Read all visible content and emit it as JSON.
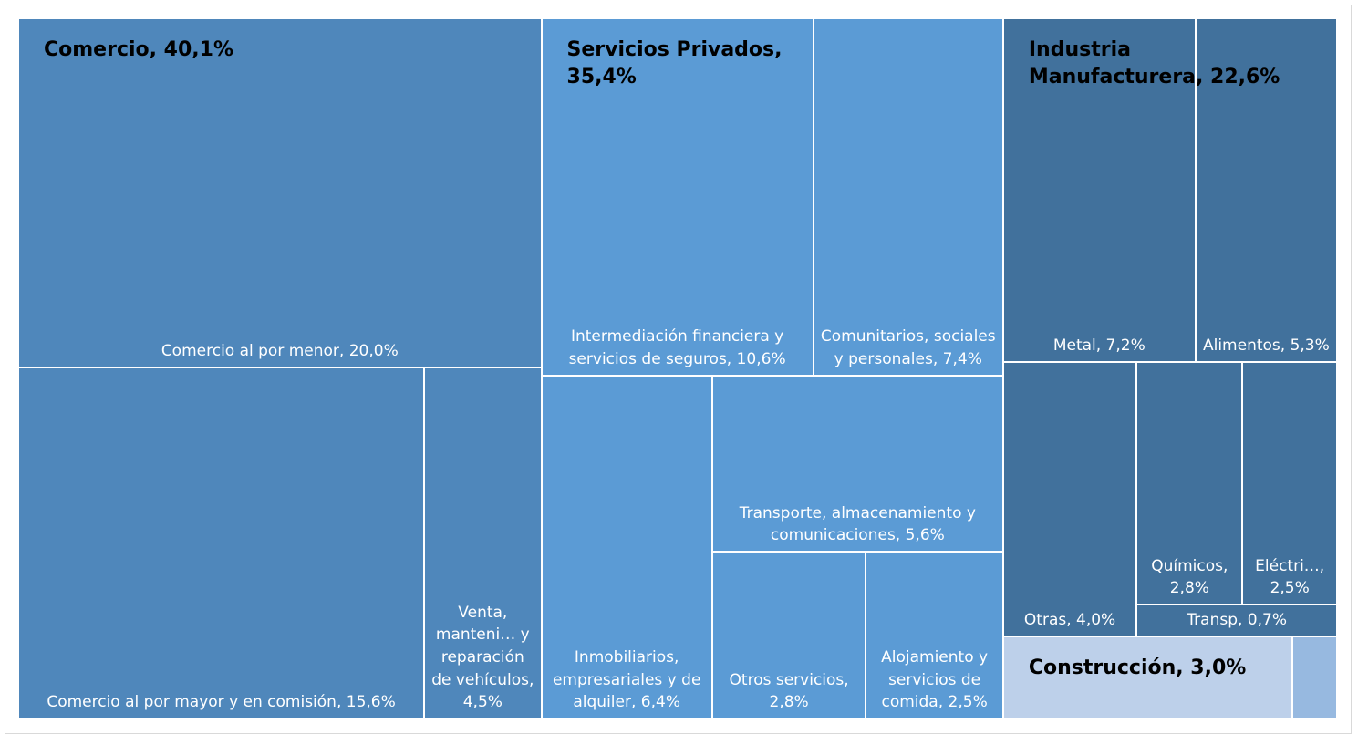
{
  "chart_data": {
    "type": "treemap",
    "groups": [
      {
        "label": "Comercio, 40,1%",
        "value": 40.1,
        "color": "#4f87bb",
        "children": [
          {
            "label": "Comercio al por menor, 20,0%",
            "value": 20.0
          },
          {
            "label": "Comercio al por mayor y en comisión, 15,6%",
            "value": 15.6
          },
          {
            "label": "Venta, manteni… y reparación de vehículos, 4,5%",
            "value": 4.5
          }
        ]
      },
      {
        "label": "Servicios Privados, 35,4%",
        "value": 35.4,
        "color": "#5b9bd5",
        "children": [
          {
            "label": "Intermediación financiera y servicios de seguros, 10,6%",
            "value": 10.6
          },
          {
            "label": "Comunitarios, sociales y personales, 7,4%",
            "value": 7.4
          },
          {
            "label": "Inmobiliarios, empresariales y de alquiler, 6,4%",
            "value": 6.4
          },
          {
            "label": "Transporte, almacenamiento y comunicaciones, 5,6%",
            "value": 5.6
          },
          {
            "label": "Otros servicios, 2,8%",
            "value": 2.8
          },
          {
            "label": "Alojamiento y servicios de comida, 2,5%",
            "value": 2.5
          }
        ]
      },
      {
        "label": "Industria Manufacturera, 22,6%",
        "value": 22.6,
        "color": "#41719c",
        "children": [
          {
            "label": "Metal, 7,2%",
            "value": 7.2
          },
          {
            "label": "Alimentos, 5,3%",
            "value": 5.3
          },
          {
            "label": "Otras, 4,0%",
            "value": 4.0
          },
          {
            "label": "Químicos, 2,8%",
            "value": 2.8
          },
          {
            "label": "Eléctri…, 2,5%",
            "value": 2.5
          },
          {
            "label": "Transp, 0,7%",
            "value": 0.7
          }
        ]
      },
      {
        "label": "Construcción, 3,0%",
        "value": 3.0,
        "color": "#bdd0ea",
        "children": [
          {
            "label": null,
            "value": 2.6
          },
          {
            "label": null,
            "value": 0.4,
            "color": "#97b9e0"
          }
        ]
      }
    ]
  }
}
